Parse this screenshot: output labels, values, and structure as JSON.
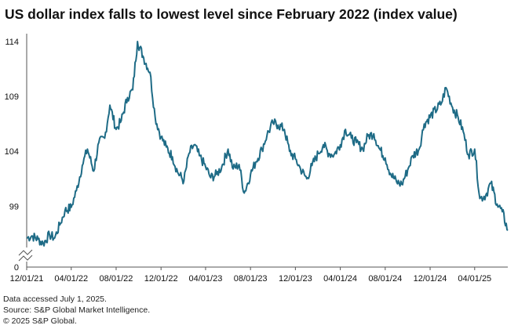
{
  "title": "US dollar index falls to lowest level since February 2022 (index value)",
  "notes": {
    "accessed": "Data accessed July 1, 2025.",
    "source": "Source: S&P Global Market Intelligence.",
    "copyright": "© 2025 S&P Global."
  },
  "colors": {
    "line": "#1e6b86",
    "axis": "#555555",
    "text": "#111111"
  },
  "chart_data": {
    "type": "line",
    "title": "US dollar index falls to lowest level since February 2022 (index value)",
    "xlabel": "",
    "ylabel": "",
    "y_ticks": [
      0,
      99,
      104,
      109,
      114
    ],
    "y_axis_break": true,
    "ylim": [
      95.7,
      114.8
    ],
    "x_ticks": [
      "12/01/21",
      "04/01/22",
      "08/01/22",
      "12/01/22",
      "04/01/23",
      "08/01/23",
      "12/01/23",
      "04/01/24",
      "08/01/24",
      "12/01/24",
      "04/01/25"
    ],
    "grid": false,
    "series": [
      {
        "name": "",
        "x": [
          "2021-12-01",
          "2021-12-15",
          "2022-01-01",
          "2022-01-15",
          "2022-02-01",
          "2022-02-15",
          "2022-03-01",
          "2022-03-15",
          "2022-04-01",
          "2022-04-15",
          "2022-05-01",
          "2022-05-15",
          "2022-06-01",
          "2022-06-15",
          "2022-07-01",
          "2022-07-15",
          "2022-08-01",
          "2022-08-15",
          "2022-09-01",
          "2022-09-15",
          "2022-09-28",
          "2022-10-15",
          "2022-11-01",
          "2022-11-15",
          "2022-12-01",
          "2022-12-15",
          "2023-01-01",
          "2023-01-15",
          "2023-02-01",
          "2023-02-15",
          "2023-03-01",
          "2023-03-15",
          "2023-04-01",
          "2023-04-15",
          "2023-05-01",
          "2023-05-15",
          "2023-06-01",
          "2023-06-15",
          "2023-07-01",
          "2023-07-15",
          "2023-08-01",
          "2023-08-15",
          "2023-09-01",
          "2023-09-15",
          "2023-10-01",
          "2023-10-15",
          "2023-11-01",
          "2023-11-15",
          "2023-12-01",
          "2023-12-15",
          "2024-01-01",
          "2024-01-15",
          "2024-02-01",
          "2024-02-15",
          "2024-03-01",
          "2024-03-15",
          "2024-04-01",
          "2024-04-15",
          "2024-05-01",
          "2024-05-15",
          "2024-06-01",
          "2024-06-15",
          "2024-07-01",
          "2024-07-15",
          "2024-08-01",
          "2024-08-15",
          "2024-09-01",
          "2024-09-15",
          "2024-10-01",
          "2024-10-15",
          "2024-11-01",
          "2024-11-15",
          "2025-01-01",
          "2025-01-13",
          "2025-01-31",
          "2025-02-15",
          "2025-03-01",
          "2025-03-15",
          "2025-04-01",
          "2025-04-15",
          "2025-05-01",
          "2025-05-15",
          "2025-06-01",
          "2025-06-15",
          "2025-06-30"
        ],
        "values": [
          96.1,
          96.3,
          96.0,
          95.6,
          96.4,
          96.1,
          97.3,
          98.6,
          98.9,
          100.4,
          102.7,
          104.2,
          102.2,
          104.8,
          105.2,
          108.2,
          106.0,
          106.8,
          108.9,
          109.6,
          114.0,
          112.5,
          111.2,
          107.1,
          105.3,
          104.4,
          103.5,
          102.1,
          101.3,
          103.8,
          104.6,
          103.6,
          102.6,
          101.6,
          101.9,
          102.6,
          104.2,
          102.4,
          102.8,
          100.2,
          101.9,
          103.0,
          104.2,
          105.5,
          106.6,
          106.4,
          106.0,
          104.0,
          103.3,
          102.4,
          101.5,
          102.7,
          103.8,
          104.6,
          103.8,
          103.7,
          104.6,
          106.0,
          105.2,
          104.8,
          104.2,
          105.4,
          105.6,
          104.3,
          103.4,
          102.0,
          101.2,
          101.0,
          102.3,
          103.6,
          104.2,
          106.5,
          108.4,
          109.8,
          108.0,
          107.1,
          105.8,
          103.7,
          104.2,
          99.7,
          100.0,
          101.1,
          99.2,
          98.5,
          96.8
        ]
      }
    ]
  }
}
